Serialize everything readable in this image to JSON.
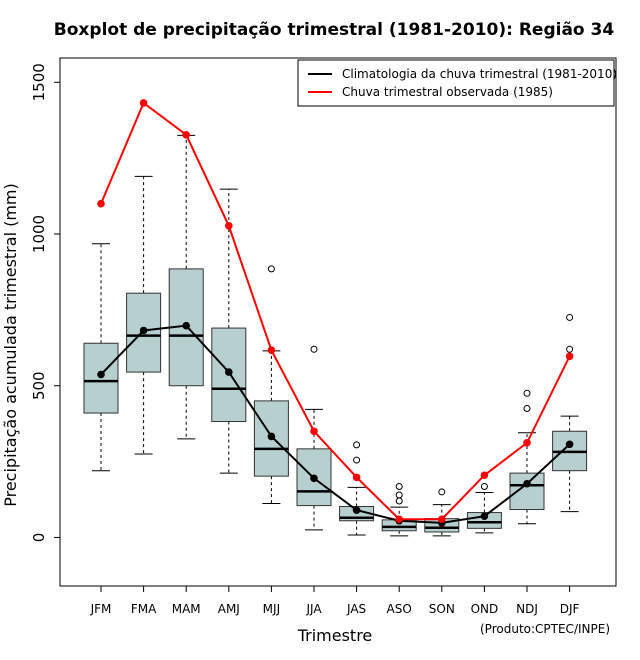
{
  "chart_data": {
    "type": "boxplot",
    "title": "Boxplot de precipitação trimestral (1981-2010): Região 34",
    "xlabel": "Trimestre",
    "ylabel": "Precipitação acumulada trimestral (mm)",
    "ylim": [
      -160,
      1580
    ],
    "yticks": [
      0,
      500,
      1000,
      1500
    ],
    "credit": "(Produto:CPTEC/INPE)",
    "categories": [
      "JFM",
      "FMA",
      "MAM",
      "AMJ",
      "MJJ",
      "JJA",
      "JAS",
      "ASO",
      "SON",
      "OND",
      "NDJ",
      "DJF"
    ],
    "boxes": [
      {
        "lower_whisker": 220,
        "q1": 410,
        "median": 515,
        "q3": 640,
        "upper_whisker": 968,
        "outliers": []
      },
      {
        "lower_whisker": 275,
        "q1": 545,
        "median": 665,
        "q3": 805,
        "upper_whisker": 1190,
        "outliers": []
      },
      {
        "lower_whisker": 325,
        "q1": 500,
        "median": 665,
        "q3": 885,
        "upper_whisker": 1325,
        "outliers": []
      },
      {
        "lower_whisker": 212,
        "q1": 382,
        "median": 490,
        "q3": 690,
        "upper_whisker": 1148,
        "outliers": []
      },
      {
        "lower_whisker": 112,
        "q1": 202,
        "median": 292,
        "q3": 450,
        "upper_whisker": 615,
        "outliers": [
          885
        ]
      },
      {
        "lower_whisker": 25,
        "q1": 105,
        "median": 152,
        "q3": 292,
        "upper_whisker": 422,
        "outliers": [
          620
        ]
      },
      {
        "lower_whisker": 8,
        "q1": 55,
        "median": 65,
        "q3": 102,
        "upper_whisker": 165,
        "outliers": [
          255,
          305
        ]
      },
      {
        "lower_whisker": 5,
        "q1": 22,
        "median": 35,
        "q3": 58,
        "upper_whisker": 100,
        "outliers": [
          120,
          140,
          168
        ]
      },
      {
        "lower_whisker": 5,
        "q1": 18,
        "median": 32,
        "q3": 62,
        "upper_whisker": 108,
        "outliers": [
          150
        ]
      },
      {
        "lower_whisker": 15,
        "q1": 30,
        "median": 50,
        "q3": 82,
        "upper_whisker": 148,
        "outliers": [
          168
        ]
      },
      {
        "lower_whisker": 45,
        "q1": 92,
        "median": 172,
        "q3": 212,
        "upper_whisker": 345,
        "outliers": [
          425,
          475
        ]
      },
      {
        "lower_whisker": 85,
        "q1": 220,
        "median": 282,
        "q3": 350,
        "upper_whisker": 400,
        "outliers": [
          620,
          725
        ]
      }
    ],
    "series": [
      {
        "name": "Climatologia da chuva trimestral (1981-2010)",
        "color": "#000000",
        "values": [
          537,
          682,
          698,
          545,
          333,
          195,
          90,
          55,
          48,
          70,
          177,
          307
        ]
      },
      {
        "name": "Chuva trimestral observada (1985)",
        "color": "#ff0000",
        "values": [
          1100,
          1432,
          1327,
          1027,
          617,
          350,
          198,
          60,
          60,
          205,
          312,
          597
        ]
      }
    ],
    "legend_position": "top-right",
    "box_fill": "#b8cfcf"
  }
}
